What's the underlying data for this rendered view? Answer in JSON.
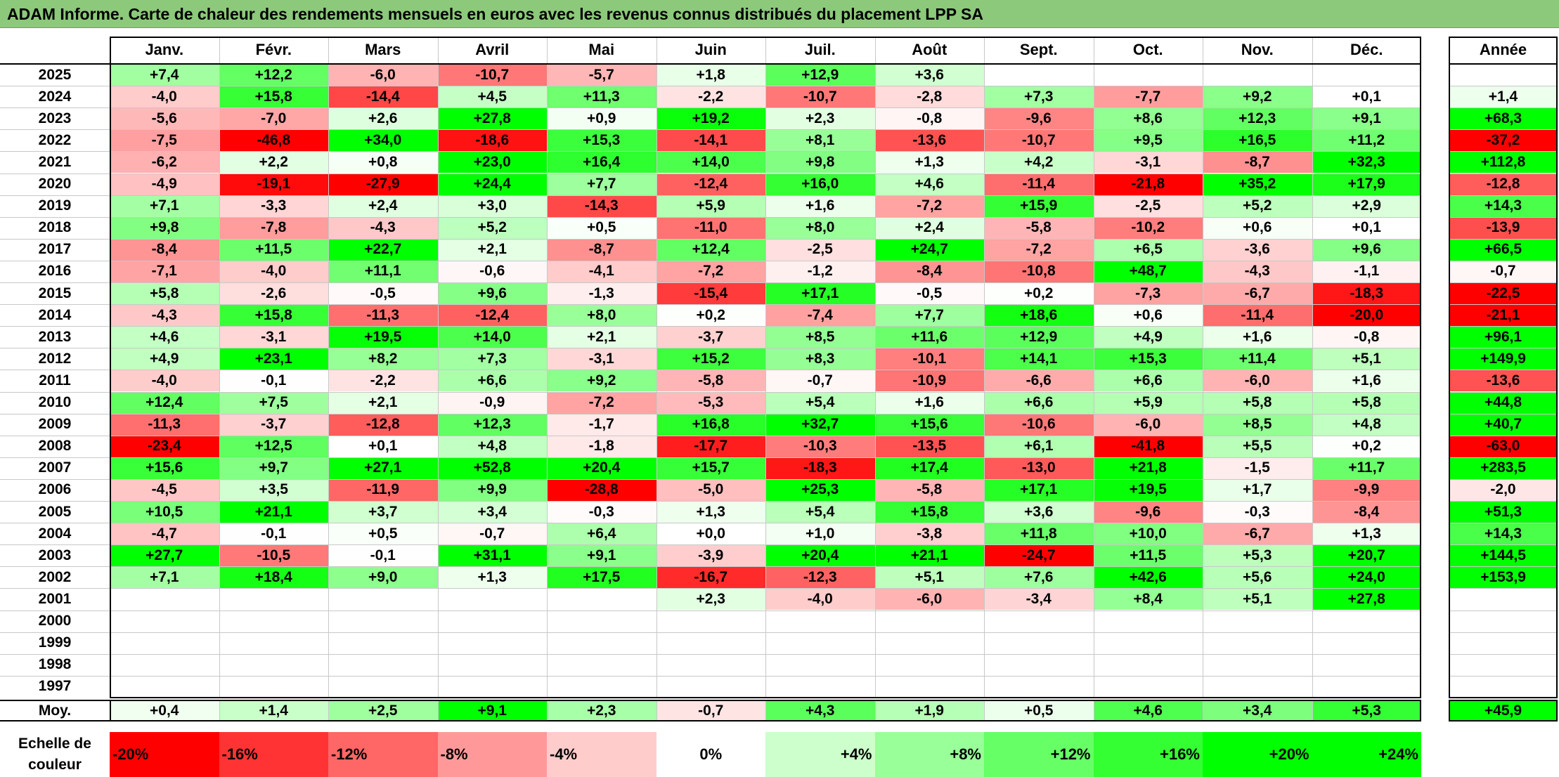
{
  "title": "ADAM Informe. Carte de chaleur des rendements mensuels en euros avec les revenus connus distribués du placement LPP SA",
  "chart_data": {
    "type": "heatmap",
    "months": [
      "Janv.",
      "Févr.",
      "Mars",
      "Avril",
      "Mai",
      "Juin",
      "Juil.",
      "Août",
      "Sept.",
      "Oct.",
      "Nov.",
      "Déc."
    ],
    "year_header": "Année",
    "rows": [
      {
        "year": "2025",
        "values": [
          "+7,4",
          "+12,2",
          "-6,0",
          "-10,7",
          "-5,7",
          "+1,8",
          "+12,9",
          "+3,6",
          "",
          "",
          "",
          ""
        ],
        "annual": ""
      },
      {
        "year": "2024",
        "values": [
          "-4,0",
          "+15,8",
          "-14,4",
          "+4,5",
          "+11,3",
          "-2,2",
          "-10,7",
          "-2,8",
          "+7,3",
          "-7,7",
          "+9,2",
          "+0,1"
        ],
        "annual": "+1,4"
      },
      {
        "year": "2023",
        "values": [
          "-5,6",
          "-7,0",
          "+2,6",
          "+27,8",
          "+0,9",
          "+19,2",
          "+2,3",
          "-0,8",
          "-9,6",
          "+8,6",
          "+12,3",
          "+9,1"
        ],
        "annual": "+68,3"
      },
      {
        "year": "2022",
        "values": [
          "-7,5",
          "-46,8",
          "+34,0",
          "-18,6",
          "+15,3",
          "-14,1",
          "+8,1",
          "-13,6",
          "-10,7",
          "+9,5",
          "+16,5",
          "+11,2"
        ],
        "annual": "-37,2"
      },
      {
        "year": "2021",
        "values": [
          "-6,2",
          "+2,2",
          "+0,8",
          "+23,0",
          "+16,4",
          "+14,0",
          "+9,8",
          "+1,3",
          "+4,2",
          "-3,1",
          "-8,7",
          "+32,3"
        ],
        "annual": "+112,8"
      },
      {
        "year": "2020",
        "values": [
          "-4,9",
          "-19,1",
          "-27,9",
          "+24,4",
          "+7,7",
          "-12,4",
          "+16,0",
          "+4,6",
          "-11,4",
          "-21,8",
          "+35,2",
          "+17,9"
        ],
        "annual": "-12,8"
      },
      {
        "year": "2019",
        "values": [
          "+7,1",
          "-3,3",
          "+2,4",
          "+3,0",
          "-14,3",
          "+5,9",
          "+1,6",
          "-7,2",
          "+15,9",
          "-2,5",
          "+5,2",
          "+2,9"
        ],
        "annual": "+14,3"
      },
      {
        "year": "2018",
        "values": [
          "+9,8",
          "-7,8",
          "-4,3",
          "+5,2",
          "+0,5",
          "-11,0",
          "+8,0",
          "+2,4",
          "-5,8",
          "-10,2",
          "+0,6",
          "+0,1"
        ],
        "annual": "-13,9"
      },
      {
        "year": "2017",
        "values": [
          "-8,4",
          "+11,5",
          "+22,7",
          "+2,1",
          "-8,7",
          "+12,4",
          "-2,5",
          "+24,7",
          "-7,2",
          "+6,5",
          "-3,6",
          "+9,6"
        ],
        "annual": "+66,5"
      },
      {
        "year": "2016",
        "values": [
          "-7,1",
          "-4,0",
          "+11,1",
          "-0,6",
          "-4,1",
          "-7,2",
          "-1,2",
          "-8,4",
          "-10,8",
          "+48,7",
          "-4,3",
          "-1,1"
        ],
        "annual": "-0,7"
      },
      {
        "year": "2015",
        "values": [
          "+5,8",
          "-2,6",
          "-0,5",
          "+9,6",
          "-1,3",
          "-15,4",
          "+17,1",
          "-0,5",
          "+0,2",
          "-7,3",
          "-6,7",
          "-18,3"
        ],
        "annual": "-22,5"
      },
      {
        "year": "2014",
        "values": [
          "-4,3",
          "+15,8",
          "-11,3",
          "-12,4",
          "+8,0",
          "+0,2",
          "-7,4",
          "+7,7",
          "+18,6",
          "+0,6",
          "-11,4",
          "-20,0"
        ],
        "annual": "-21,1"
      },
      {
        "year": "2013",
        "values": [
          "+4,6",
          "-3,1",
          "+19,5",
          "+14,0",
          "+2,1",
          "-3,7",
          "+8,5",
          "+11,6",
          "+12,9",
          "+4,9",
          "+1,6",
          "-0,8"
        ],
        "annual": "+96,1"
      },
      {
        "year": "2012",
        "values": [
          "+4,9",
          "+23,1",
          "+8,2",
          "+7,3",
          "-3,1",
          "+15,2",
          "+8,3",
          "-10,1",
          "+14,1",
          "+15,3",
          "+11,4",
          "+5,1"
        ],
        "annual": "+149,9"
      },
      {
        "year": "2011",
        "values": [
          "-4,0",
          "-0,1",
          "-2,2",
          "+6,6",
          "+9,2",
          "-5,8",
          "-0,7",
          "-10,9",
          "-6,6",
          "+6,6",
          "-6,0",
          "+1,6"
        ],
        "annual": "-13,6"
      },
      {
        "year": "2010",
        "values": [
          "+12,4",
          "+7,5",
          "+2,1",
          "-0,9",
          "-7,2",
          "-5,3",
          "+5,4",
          "+1,6",
          "+6,6",
          "+5,9",
          "+5,8",
          "+5,8"
        ],
        "annual": "+44,8"
      },
      {
        "year": "2009",
        "values": [
          "-11,3",
          "-3,7",
          "-12,8",
          "+12,3",
          "-1,7",
          "+16,8",
          "+32,7",
          "+15,6",
          "-10,6",
          "-6,0",
          "+8,5",
          "+4,8"
        ],
        "annual": "+40,7"
      },
      {
        "year": "2008",
        "values": [
          "-23,4",
          "+12,5",
          "+0,1",
          "+4,8",
          "-1,8",
          "-17,7",
          "-10,3",
          "-13,5",
          "+6,1",
          "-41,8",
          "+5,5",
          "+0,2"
        ],
        "annual": "-63,0"
      },
      {
        "year": "2007",
        "values": [
          "+15,6",
          "+9,7",
          "+27,1",
          "+52,8",
          "+20,4",
          "+15,7",
          "-18,3",
          "+17,4",
          "-13,0",
          "+21,8",
          "-1,5",
          "+11,7"
        ],
        "annual": "+283,5"
      },
      {
        "year": "2006",
        "values": [
          "-4,5",
          "+3,5",
          "-11,9",
          "+9,9",
          "-28,8",
          "-5,0",
          "+25,3",
          "-5,8",
          "+17,1",
          "+19,5",
          "+1,7",
          "-9,9"
        ],
        "annual": "-2,0"
      },
      {
        "year": "2005",
        "values": [
          "+10,5",
          "+21,1",
          "+3,7",
          "+3,4",
          "-0,3",
          "+1,3",
          "+5,4",
          "+15,8",
          "+3,6",
          "-9,6",
          "-0,3",
          "-8,4"
        ],
        "annual": "+51,3"
      },
      {
        "year": "2004",
        "values": [
          "-4,7",
          "-0,1",
          "+0,5",
          "-0,7",
          "+6,4",
          "+0,0",
          "+1,0",
          "-3,8",
          "+11,8",
          "+10,0",
          "-6,7",
          "+1,3"
        ],
        "annual": "+14,3"
      },
      {
        "year": "2003",
        "values": [
          "+27,7",
          "-10,5",
          "-0,1",
          "+31,1",
          "+9,1",
          "-3,9",
          "+20,4",
          "+21,1",
          "-24,7",
          "+11,5",
          "+5,3",
          "+20,7"
        ],
        "annual": "+144,5"
      },
      {
        "year": "2002",
        "values": [
          "+7,1",
          "+18,4",
          "+9,0",
          "+1,3",
          "+17,5",
          "-16,7",
          "-12,3",
          "+5,1",
          "+7,6",
          "+42,6",
          "+5,6",
          "+24,0"
        ],
        "annual": "+153,9"
      },
      {
        "year": "2001",
        "values": [
          "",
          "",
          "",
          "",
          "",
          "+2,3",
          "-4,0",
          "-6,0",
          "-3,4",
          "+8,4",
          "+5,1",
          "+27,8"
        ],
        "annual": ""
      },
      {
        "year": "2000",
        "values": [
          "",
          "",
          "",
          "",
          "",
          "",
          "",
          "",
          "",
          "",
          "",
          ""
        ],
        "annual": ""
      },
      {
        "year": "1999",
        "values": [
          "",
          "",
          "",
          "",
          "",
          "",
          "",
          "",
          "",
          "",
          "",
          ""
        ],
        "annual": ""
      },
      {
        "year": "1998",
        "values": [
          "",
          "",
          "",
          "",
          "",
          "",
          "",
          "",
          "",
          "",
          "",
          ""
        ],
        "annual": ""
      },
      {
        "year": "1997",
        "values": [
          "",
          "",
          "",
          "",
          "",
          "",
          "",
          "",
          "",
          "",
          "",
          ""
        ],
        "annual": ""
      }
    ],
    "average": {
      "label": "Moy.",
      "values": [
        "+0,4",
        "+1,4",
        "+2,5",
        "+9,1",
        "+2,3",
        "-0,7",
        "+4,3",
        "+1,9",
        "+0,5",
        "+4,6",
        "+3,4",
        "+5,3"
      ],
      "annual": "+45,9"
    },
    "color_scale": {
      "label_line1": "Echelle de",
      "label_line2": "couleur",
      "stops": [
        {
          "label": "-20%",
          "color": "#ff0000"
        },
        {
          "label": "-16%",
          "color": "#ff3333"
        },
        {
          "label": "-12%",
          "color": "#ff6666"
        },
        {
          "label": "-8%",
          "color": "#ff9999"
        },
        {
          "label": "-4%",
          "color": "#ffcccc"
        },
        {
          "label": "0%",
          "color": "#ffffff"
        },
        {
          "label": "+4%",
          "color": "#ccffcc"
        },
        {
          "label": "+8%",
          "color": "#99ff99"
        },
        {
          "label": "+12%",
          "color": "#66ff66"
        },
        {
          "label": "+16%",
          "color": "#33ff33"
        },
        {
          "label": "+20%",
          "color": "#00ff00"
        },
        {
          "label": "+24%",
          "color": "#00ff00"
        }
      ]
    },
    "colors": {
      "negative_max": "#ff0000",
      "neutral": "#ffffff",
      "positive_max": "#00ff00",
      "title_background": "#8cc97a"
    }
  }
}
